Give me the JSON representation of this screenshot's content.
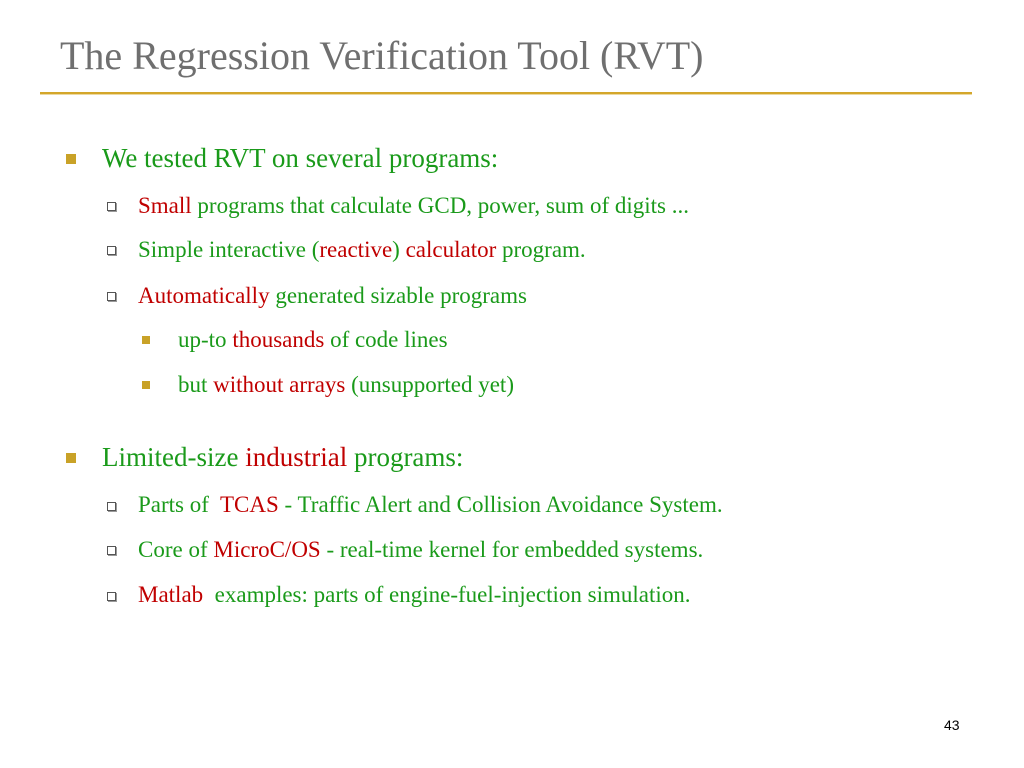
{
  "slide": {
    "title": "The Regression Verification Tool (RVT)",
    "page_number": "43",
    "accent_color": "#d4a62a",
    "text_green": "#1a9a1a",
    "text_red": "#c00000"
  },
  "section1": {
    "heading": "We tested RVT on several programs:",
    "item1": {
      "red": "Small",
      "rest": " programs that calculate GCD, power, sum of digits ..."
    },
    "item2": {
      "a": "Simple interactive (",
      "b": "reactive",
      "c": ") ",
      "d": "calculator",
      "e": " program."
    },
    "item3": {
      "red": "Automatically",
      "rest": " generated sizable programs"
    },
    "sub1": {
      "a": "up-to ",
      "b": "thousands",
      "c": " of code lines"
    },
    "sub2": {
      "a": "but ",
      "b": "without arrays",
      "c": " (unsupported yet)"
    }
  },
  "section2": {
    "heading": {
      "a": "Limited-size ",
      "b": "industrial",
      "c": " programs:"
    },
    "item1": {
      "a": "Parts of  ",
      "b": "TCAS",
      "c": " - Traffic Alert and Collision Avoidance System."
    },
    "item2": {
      "a": "Core of ",
      "b": "MicroC/OS",
      "c": " - real-time kernel for embedded systems."
    },
    "item3": {
      "red": "Matlab",
      "rest": "  examples: parts of engine-fuel-injection simulation."
    }
  }
}
